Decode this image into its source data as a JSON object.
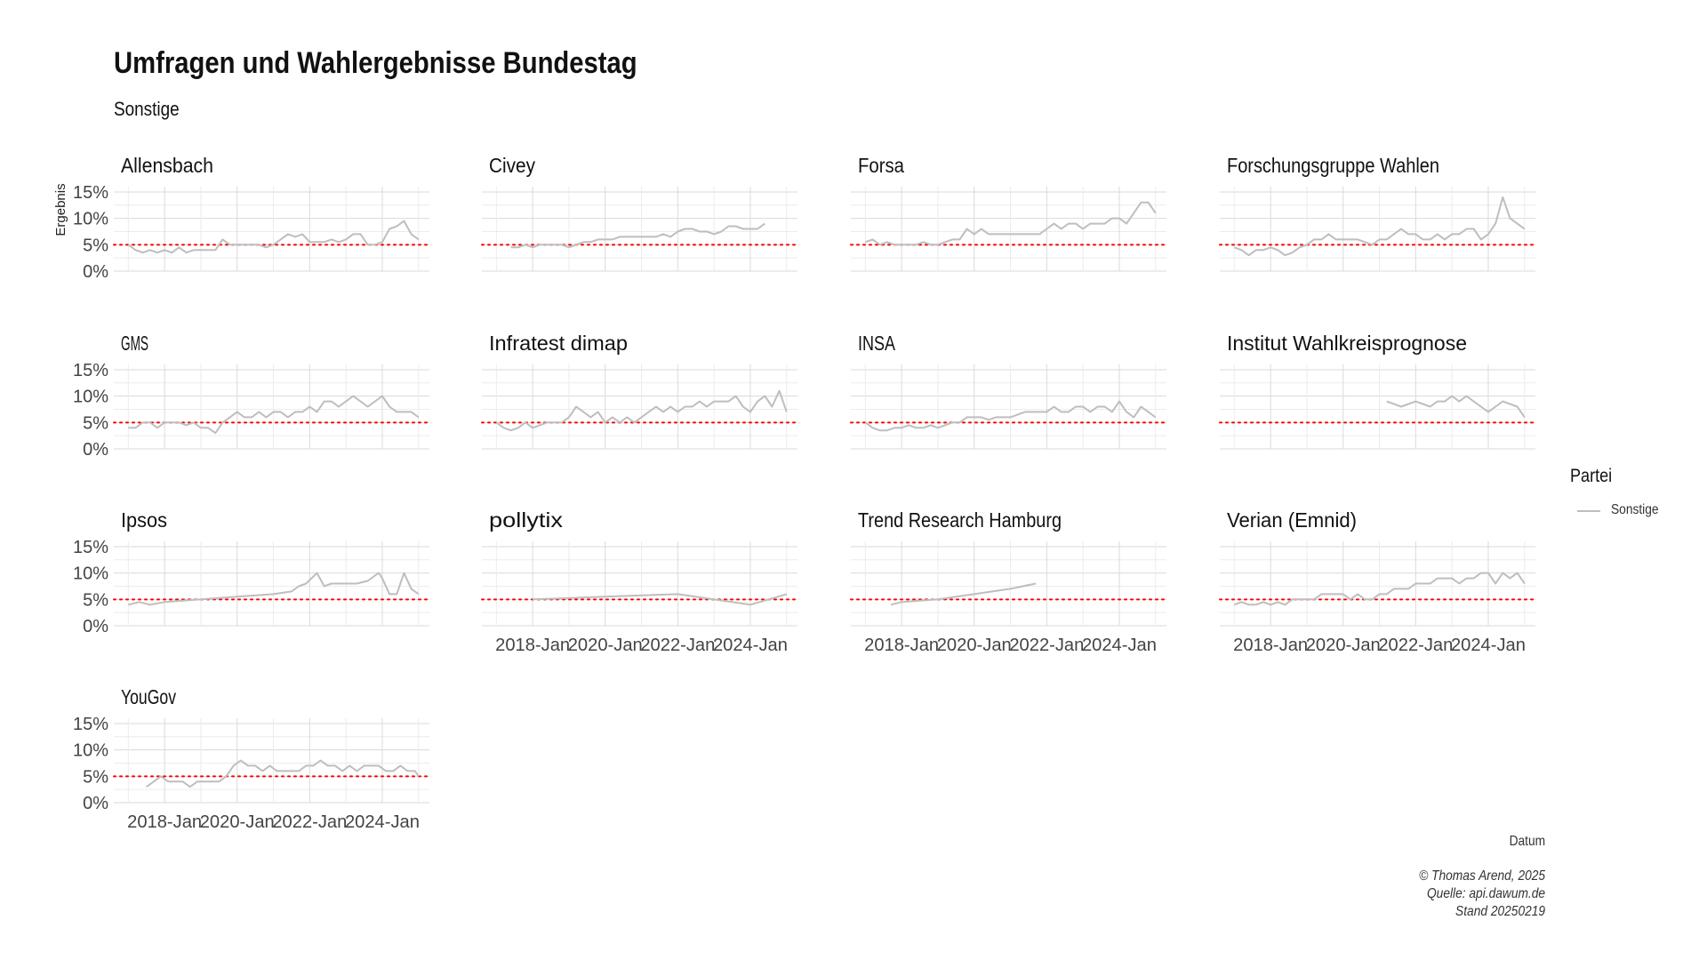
{
  "title": "Umfragen und Wahlergebnisse Bundestag",
  "subtitle": "Sonstige",
  "legend": {
    "title": "Partei",
    "entries": [
      {
        "label": "Sonstige",
        "color": "#bebebe"
      }
    ]
  },
  "caption": [
    "© Thomas Arend, 2025",
    "Quelle: api.dawum.de",
    "Stand 20250219"
  ],
  "chart_data": {
    "type": "line",
    "facet": "small-multiples",
    "xlabel": "Datum",
    "ylabel": "Ergebnis",
    "ylim": [
      0,
      16
    ],
    "yticks": [
      0,
      5,
      10,
      15
    ],
    "ytick_labels": [
      "0%",
      "5%",
      "10%",
      "15%"
    ],
    "xlim": [
      2016.6,
      2025.3
    ],
    "xticks": [
      2018,
      2020,
      2022,
      2024
    ],
    "xtick_labels": [
      "2018-Jan",
      "2020-Jan",
      "2022-Jan",
      "2024-Jan"
    ],
    "reference_line": {
      "y": 5,
      "color": "#ff0000",
      "style": "dotted"
    },
    "series_color": "#bebebe",
    "grid": true,
    "panels": [
      {
        "name": "Allensbach",
        "series": [
          {
            "name": "Sonstige",
            "x": [
              2017.0,
              2017.2,
              2017.4,
              2017.6,
              2017.8,
              2018.0,
              2018.2,
              2018.4,
              2018.6,
              2018.8,
              2019.0,
              2019.2,
              2019.4,
              2019.6,
              2019.8,
              2020.0,
              2020.2,
              2020.4,
              2020.6,
              2020.8,
              2021.0,
              2021.2,
              2021.4,
              2021.6,
              2021.8,
              2022.0,
              2022.2,
              2022.4,
              2022.6,
              2022.8,
              2023.0,
              2023.2,
              2023.4,
              2023.6,
              2023.8,
              2024.0,
              2024.2,
              2024.4,
              2024.6,
              2024.8,
              2025.0
            ],
            "y": [
              5,
              4,
              3.5,
              4,
              3.5,
              4,
              3.5,
              4.5,
              3.5,
              4,
              4,
              4,
              4,
              6,
              5,
              5,
              5,
              5,
              5,
              4.5,
              5,
              6,
              7,
              6.5,
              7,
              5.5,
              5.5,
              5.5,
              6,
              5.5,
              6,
              7,
              7,
              5,
              5,
              5.5,
              8,
              8.5,
              9.5,
              7,
              6
            ]
          }
        ]
      },
      {
        "name": "Civey",
        "series": [
          {
            "name": "Sonstige",
            "x": [
              2017.4,
              2017.6,
              2017.8,
              2018.0,
              2018.2,
              2018.4,
              2018.6,
              2018.8,
              2019.0,
              2019.2,
              2019.4,
              2019.6,
              2019.8,
              2020.0,
              2020.2,
              2020.4,
              2020.6,
              2020.8,
              2021.0,
              2021.2,
              2021.4,
              2021.6,
              2021.8,
              2022.0,
              2022.2,
              2022.4,
              2022.6,
              2022.8,
              2023.0,
              2023.2,
              2023.4,
              2023.6,
              2023.8,
              2024.0,
              2024.2,
              2024.4
            ],
            "y": [
              4.5,
              4.5,
              5,
              4.5,
              5,
              5,
              5,
              5,
              4.5,
              5,
              5.5,
              5.5,
              6,
              6,
              6,
              6.5,
              6.5,
              6.5,
              6.5,
              6.5,
              6.5,
              7,
              6.5,
              7.5,
              8,
              8,
              7.5,
              7.5,
              7,
              7.5,
              8.5,
              8.5,
              8,
              8,
              8,
              9
            ]
          }
        ]
      },
      {
        "name": "Forsa",
        "series": [
          {
            "name": "Sonstige",
            "x": [
              2017.0,
              2017.2,
              2017.4,
              2017.6,
              2017.8,
              2018.0,
              2018.2,
              2018.4,
              2018.6,
              2018.8,
              2019.0,
              2019.2,
              2019.4,
              2019.6,
              2019.8,
              2020.0,
              2020.2,
              2020.4,
              2020.6,
              2020.8,
              2021.0,
              2021.2,
              2021.4,
              2021.6,
              2021.8,
              2022.0,
              2022.2,
              2022.4,
              2022.6,
              2022.8,
              2023.0,
              2023.2,
              2023.4,
              2023.6,
              2023.8,
              2024.0,
              2024.2,
              2024.4,
              2024.6,
              2024.8,
              2025.0
            ],
            "y": [
              5.5,
              6,
              5,
              5.5,
              5,
              5,
              5,
              5,
              5.5,
              5,
              5,
              5.5,
              6,
              6,
              8,
              7,
              8,
              7,
              7,
              7,
              7,
              7,
              7,
              7,
              7,
              8,
              9,
              8,
              9,
              9,
              8,
              9,
              9,
              9,
              10,
              10,
              9,
              11,
              13,
              13,
              11
            ]
          }
        ]
      },
      {
        "name": "Forschungsgruppe Wahlen",
        "series": [
          {
            "name": "Sonstige",
            "x": [
              2017.0,
              2017.2,
              2017.4,
              2017.6,
              2017.8,
              2018.0,
              2018.2,
              2018.4,
              2018.6,
              2018.8,
              2019.0,
              2019.2,
              2019.4,
              2019.6,
              2019.8,
              2020.0,
              2020.2,
              2020.4,
              2020.6,
              2020.8,
              2021.0,
              2021.2,
              2021.4,
              2021.6,
              2021.8,
              2022.0,
              2022.2,
              2022.4,
              2022.6,
              2022.8,
              2023.0,
              2023.2,
              2023.4,
              2023.6,
              2023.8,
              2024.0,
              2024.2,
              2024.4,
              2024.6,
              2024.8,
              2025.0
            ],
            "y": [
              4.5,
              4,
              3,
              4,
              4,
              4.5,
              4,
              3,
              3.5,
              4.5,
              5,
              6,
              6,
              7,
              6,
              6,
              6,
              6,
              5.5,
              5,
              6,
              6,
              7,
              8,
              7,
              7,
              6,
              6,
              7,
              6,
              7,
              7,
              8,
              8,
              6,
              7,
              9,
              14,
              10,
              9,
              8
            ]
          }
        ]
      },
      {
        "name": "GMS",
        "series": [
          {
            "name": "Sonstige",
            "x": [
              2017.0,
              2017.2,
              2017.4,
              2017.6,
              2017.8,
              2018.0,
              2018.2,
              2018.4,
              2018.6,
              2018.8,
              2019.0,
              2019.2,
              2019.4,
              2019.6,
              2019.8,
              2020.0,
              2020.2,
              2020.4,
              2020.6,
              2020.8,
              2021.0,
              2021.2,
              2021.4,
              2021.6,
              2021.8,
              2022.0,
              2022.2,
              2022.4,
              2022.6,
              2022.8,
              2023.0,
              2023.2,
              2023.4,
              2023.6,
              2023.8,
              2024.0,
              2024.2,
              2024.4,
              2024.6,
              2024.8,
              2025.0
            ],
            "y": [
              4,
              4,
              5,
              5,
              4,
              5,
              5,
              5,
              4.5,
              5,
              4,
              4,
              3,
              5,
              6,
              7,
              6,
              6,
              7,
              6,
              7,
              7,
              6,
              7,
              7,
              8,
              7,
              9,
              9,
              8,
              9,
              10,
              9,
              8,
              9,
              10,
              8,
              7,
              7,
              7,
              6
            ]
          }
        ]
      },
      {
        "name": "Infratest dimap",
        "series": [
          {
            "name": "Sonstige",
            "x": [
              2017.0,
              2017.2,
              2017.4,
              2017.6,
              2017.8,
              2018.0,
              2018.2,
              2018.4,
              2018.6,
              2018.8,
              2019.0,
              2019.2,
              2019.4,
              2019.6,
              2019.8,
              2020.0,
              2020.2,
              2020.4,
              2020.6,
              2020.8,
              2021.0,
              2021.2,
              2021.4,
              2021.6,
              2021.8,
              2022.0,
              2022.2,
              2022.4,
              2022.6,
              2022.8,
              2023.0,
              2023.2,
              2023.4,
              2023.6,
              2023.8,
              2024.0,
              2024.2,
              2024.4,
              2024.6,
              2024.8,
              2025.0
            ],
            "y": [
              5,
              4,
              3.5,
              4,
              5,
              4,
              4.5,
              5,
              5,
              5,
              6,
              8,
              7,
              6,
              7,
              5,
              6,
              5,
              6,
              5,
              6,
              7,
              8,
              7,
              8,
              7,
              8,
              8,
              9,
              8,
              9,
              9,
              9,
              10,
              8,
              7,
              9,
              10,
              8,
              11,
              7
            ]
          }
        ]
      },
      {
        "name": "INSA",
        "series": [
          {
            "name": "Sonstige",
            "x": [
              2017.0,
              2017.2,
              2017.4,
              2017.6,
              2017.8,
              2018.0,
              2018.2,
              2018.4,
              2018.6,
              2018.8,
              2019.0,
              2019.2,
              2019.4,
              2019.6,
              2019.8,
              2020.0,
              2020.2,
              2020.4,
              2020.6,
              2020.8,
              2021.0,
              2021.2,
              2021.4,
              2021.6,
              2021.8,
              2022.0,
              2022.2,
              2022.4,
              2022.6,
              2022.8,
              2023.0,
              2023.2,
              2023.4,
              2023.6,
              2023.8,
              2024.0,
              2024.2,
              2024.4,
              2024.6,
              2024.8,
              2025.0
            ],
            "y": [
              5,
              4,
              3.5,
              3.5,
              4,
              4,
              4.5,
              4,
              4,
              4.5,
              4,
              4.5,
              5,
              5,
              6,
              6,
              6,
              5.5,
              6,
              6,
              6,
              6.5,
              7,
              7,
              7,
              7,
              8,
              7,
              7,
              8,
              8,
              7,
              8,
              8,
              7,
              9,
              7,
              6,
              8,
              7,
              6
            ]
          }
        ]
      },
      {
        "name": "Institut Wahlkreisprognose",
        "series": [
          {
            "name": "Sonstige",
            "x": [
              2021.2,
              2021.4,
              2021.6,
              2021.8,
              2022.0,
              2022.2,
              2022.4,
              2022.6,
              2022.8,
              2023.0,
              2023.2,
              2023.4,
              2023.6,
              2023.8,
              2024.0,
              2024.2,
              2024.4,
              2024.6,
              2024.8,
              2025.0
            ],
            "y": [
              9,
              8.5,
              8,
              8.5,
              9,
              8.5,
              8,
              9,
              9,
              10,
              9,
              10,
              9,
              8,
              7,
              8,
              9,
              8.5,
              8,
              6
            ]
          }
        ]
      },
      {
        "name": "Ipsos",
        "series": [
          {
            "name": "Sonstige",
            "x": [
              2017.0,
              2017.3,
              2017.6,
              2018.0,
              2019.0,
              2020.0,
              2021.0,
              2021.5,
              2021.7,
              2021.9,
              2022.2,
              2022.4,
              2022.6,
              2023.0,
              2023.3,
              2023.6,
              2023.9,
              2024.0,
              2024.2,
              2024.4,
              2024.6,
              2024.8,
              2025.0
            ],
            "y": [
              4,
              4.5,
              4,
              4.5,
              5,
              5.5,
              6,
              6.5,
              7.5,
              8,
              10,
              7.5,
              8,
              8,
              8,
              8.5,
              10,
              9,
              6,
              6,
              10,
              7,
              6
            ]
          }
        ]
      },
      {
        "name": "pollytix",
        "series": [
          {
            "name": "Sonstige",
            "x": [
              2018.0,
              2020.0,
              2022.0,
              2024.0,
              2025.0
            ],
            "y": [
              5,
              5.5,
              6,
              4,
              6
            ]
          }
        ]
      },
      {
        "name": "Trend Research Hamburg",
        "series": [
          {
            "name": "Sonstige",
            "x": [
              2017.7,
              2018.0,
              2019.0,
              2020.0,
              2021.0,
              2021.7
            ],
            "y": [
              4,
              4.5,
              5,
              6,
              7,
              8
            ]
          }
        ]
      },
      {
        "name": "Verian (Emnid)",
        "series": [
          {
            "name": "Sonstige",
            "x": [
              2017.0,
              2017.2,
              2017.4,
              2017.6,
              2017.8,
              2018.0,
              2018.2,
              2018.4,
              2018.6,
              2018.8,
              2019.0,
              2019.2,
              2019.4,
              2019.6,
              2019.8,
              2020.0,
              2020.2,
              2020.4,
              2020.6,
              2020.8,
              2021.0,
              2021.2,
              2021.4,
              2021.6,
              2021.8,
              2022.0,
              2022.2,
              2022.4,
              2022.6,
              2022.8,
              2023.0,
              2023.2,
              2023.4,
              2023.6,
              2023.8,
              2024.0,
              2024.2,
              2024.4,
              2024.6,
              2024.8,
              2025.0
            ],
            "y": [
              4,
              4.5,
              4,
              4,
              4.5,
              4,
              4.5,
              4,
              5,
              5,
              5,
              5,
              6,
              6,
              6,
              6,
              5,
              6,
              5,
              5,
              6,
              6,
              7,
              7,
              7,
              8,
              8,
              8,
              9,
              9,
              9,
              8,
              9,
              9,
              10,
              10,
              8,
              10,
              9,
              10,
              8
            ]
          }
        ]
      },
      {
        "name": "YouGov",
        "series": [
          {
            "name": "Sonstige",
            "x": [
              2017.5,
              2017.7,
              2017.9,
              2018.1,
              2018.3,
              2018.5,
              2018.7,
              2018.9,
              2019.1,
              2019.3,
              2019.5,
              2019.7,
              2019.9,
              2020.1,
              2020.3,
              2020.5,
              2020.7,
              2020.9,
              2021.1,
              2021.3,
              2021.5,
              2021.7,
              2021.9,
              2022.1,
              2022.3,
              2022.5,
              2022.7,
              2022.9,
              2023.1,
              2023.3,
              2023.5,
              2023.7,
              2023.9,
              2024.1,
              2024.3,
              2024.5,
              2024.7,
              2024.9,
              2025.0
            ],
            "y": [
              3,
              4,
              5,
              4,
              4,
              4,
              3,
              4,
              4,
              4,
              4,
              5,
              7,
              8,
              7,
              7,
              6,
              7,
              6,
              6,
              6,
              6,
              7,
              7,
              8,
              7,
              7,
              6,
              7,
              6,
              7,
              7,
              7,
              6,
              6,
              7,
              6,
              6,
              5
            ]
          }
        ]
      }
    ]
  }
}
